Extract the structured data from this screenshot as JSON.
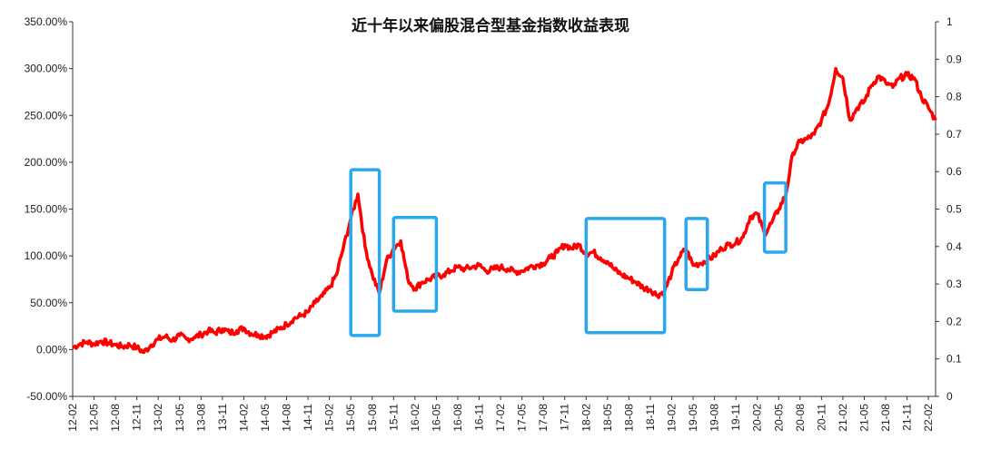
{
  "chart_data": {
    "type": "line",
    "title": "近十年以来偏股混合型基金指数收益表现",
    "xlabel": "",
    "ylabel": "",
    "y_left_ticks": [
      "350.00%",
      "300.00%",
      "250.00%",
      "200.00%",
      "150.00%",
      "100.00%",
      "50.00%",
      "0.00%",
      "-50.00%"
    ],
    "y_right_ticks": [
      "1",
      "0.9",
      "0.8",
      "0.7",
      "0.6",
      "0.5",
      "0.4",
      "0.3",
      "0.2",
      "0.1",
      "0"
    ],
    "ylim_left": [
      -50,
      350
    ],
    "ylim_right": [
      0,
      1
    ],
    "grid": false,
    "x_tick_labels": [
      "12-02",
      "12-05",
      "12-08",
      "12-11",
      "13-02",
      "13-05",
      "13-08",
      "13-11",
      "14-02",
      "14-05",
      "14-08",
      "14-11",
      "15-02",
      "15-05",
      "15-08",
      "15-11",
      "16-02",
      "16-05",
      "16-08",
      "16-11",
      "17-02",
      "17-05",
      "17-08",
      "17-11",
      "18-02",
      "18-05",
      "18-08",
      "18-11",
      "19-02",
      "19-05",
      "19-08",
      "19-11",
      "20-02",
      "20-05",
      "20-08",
      "20-11",
      "21-02",
      "21-05",
      "21-08",
      "21-11",
      "22-02"
    ],
    "series": [
      {
        "color": "#ff0000",
        "axis": "left",
        "x_start": "2012-02",
        "x_end": "2022-03",
        "points": [
          [
            "2012-02",
            2
          ],
          [
            "2012-03",
            6
          ],
          [
            "2012-04",
            8
          ],
          [
            "2012-05",
            6
          ],
          [
            "2012-06",
            9
          ],
          [
            "2012-07",
            7
          ],
          [
            "2012-08",
            5
          ],
          [
            "2012-09",
            3
          ],
          [
            "2012-10",
            5
          ],
          [
            "2012-11",
            2
          ],
          [
            "2012-12",
            -3
          ],
          [
            "2013-01",
            5
          ],
          [
            "2013-02",
            11
          ],
          [
            "2013-03",
            14
          ],
          [
            "2013-04",
            10
          ],
          [
            "2013-05",
            15
          ],
          [
            "2013-06",
            11
          ],
          [
            "2013-07",
            13
          ],
          [
            "2013-08",
            16
          ],
          [
            "2013-09",
            20
          ],
          [
            "2013-10",
            18
          ],
          [
            "2013-11",
            22
          ],
          [
            "2013-12",
            18
          ],
          [
            "2014-01",
            20
          ],
          [
            "2014-02",
            23
          ],
          [
            "2014-03",
            17
          ],
          [
            "2014-04",
            16
          ],
          [
            "2014-05",
            14
          ],
          [
            "2014-06",
            18
          ],
          [
            "2014-07",
            22
          ],
          [
            "2014-08",
            27
          ],
          [
            "2014-09",
            33
          ],
          [
            "2014-10",
            36
          ],
          [
            "2014-11",
            40
          ],
          [
            "2014-12",
            50
          ],
          [
            "2015-01",
            57
          ],
          [
            "2015-02",
            66
          ],
          [
            "2015-03",
            80
          ],
          [
            "2015-04",
            110
          ],
          [
            "2015-05",
            140
          ],
          [
            "2015-06",
            166
          ],
          [
            "2015-07",
            110
          ],
          [
            "2015-08",
            80
          ],
          [
            "2015-09",
            60
          ],
          [
            "2015-10",
            95
          ],
          [
            "2015-11",
            108
          ],
          [
            "2015-12",
            116
          ],
          [
            "2016-01",
            75
          ],
          [
            "2016-02",
            65
          ],
          [
            "2016-03",
            72
          ],
          [
            "2016-04",
            75
          ],
          [
            "2016-05",
            78
          ],
          [
            "2016-06",
            80
          ],
          [
            "2016-07",
            84
          ],
          [
            "2016-08",
            88
          ],
          [
            "2016-09",
            86
          ],
          [
            "2016-10",
            88
          ],
          [
            "2016-11",
            90
          ],
          [
            "2016-12",
            84
          ],
          [
            "2017-01",
            86
          ],
          [
            "2017-02",
            88
          ],
          [
            "2017-03",
            86
          ],
          [
            "2017-04",
            83
          ],
          [
            "2017-05",
            84
          ],
          [
            "2017-06",
            88
          ],
          [
            "2017-07",
            90
          ],
          [
            "2017-08",
            92
          ],
          [
            "2017-09",
            98
          ],
          [
            "2017-10",
            104
          ],
          [
            "2017-11",
            112
          ],
          [
            "2017-12",
            108
          ],
          [
            "2018-01",
            112
          ],
          [
            "2018-02",
            102
          ],
          [
            "2018-03",
            104
          ],
          [
            "2018-04",
            98
          ],
          [
            "2018-05",
            94
          ],
          [
            "2018-06",
            85
          ],
          [
            "2018-07",
            80
          ],
          [
            "2018-08",
            76
          ],
          [
            "2018-09",
            72
          ],
          [
            "2018-10",
            66
          ],
          [
            "2018-11",
            64
          ],
          [
            "2018-12",
            58
          ],
          [
            "2019-01",
            62
          ],
          [
            "2019-02",
            82
          ],
          [
            "2019-03",
            98
          ],
          [
            "2019-04",
            108
          ],
          [
            "2019-05",
            90
          ],
          [
            "2019-06",
            92
          ],
          [
            "2019-07",
            96
          ],
          [
            "2019-08",
            100
          ],
          [
            "2019-09",
            108
          ],
          [
            "2019-10",
            112
          ],
          [
            "2019-11",
            114
          ],
          [
            "2019-12",
            120
          ],
          [
            "2020-01",
            142
          ],
          [
            "2020-02",
            145
          ],
          [
            "2020-03",
            124
          ],
          [
            "2020-04",
            135
          ],
          [
            "2020-05",
            150
          ],
          [
            "2020-06",
            165
          ],
          [
            "2020-07",
            210
          ],
          [
            "2020-08",
            222
          ],
          [
            "2020-09",
            225
          ],
          [
            "2020-10",
            230
          ],
          [
            "2020-11",
            245
          ],
          [
            "2020-12",
            262
          ],
          [
            "2021-01",
            300
          ],
          [
            "2021-02",
            290
          ],
          [
            "2021-03",
            245
          ],
          [
            "2021-04",
            258
          ],
          [
            "2021-05",
            265
          ],
          [
            "2021-06",
            282
          ],
          [
            "2021-07",
            292
          ],
          [
            "2021-08",
            285
          ],
          [
            "2021-09",
            280
          ],
          [
            "2021-10",
            290
          ],
          [
            "2021-11",
            293
          ],
          [
            "2021-12",
            290
          ],
          [
            "2022-01",
            270
          ],
          [
            "2022-02",
            258
          ],
          [
            "2022-03",
            245
          ]
        ]
      }
    ],
    "highlight_boxes": [
      {
        "x_from": "2015-05",
        "x_to": "2015-09",
        "y_from": 15,
        "y_to": 192
      },
      {
        "x_from": "2015-11",
        "x_to": "2016-05",
        "y_from": 41,
        "y_to": 141
      },
      {
        "x_from": "2018-02",
        "x_to": "2019-01",
        "y_from": 18,
        "y_to": 140
      },
      {
        "x_from": "2019-04",
        "x_to": "2019-07",
        "y_from": 64,
        "y_to": 140
      },
      {
        "x_from": "2020-03",
        "x_to": "2020-06",
        "y_from": 104,
        "y_to": 178
      }
    ],
    "highlight_color": "#2aa8ee"
  }
}
